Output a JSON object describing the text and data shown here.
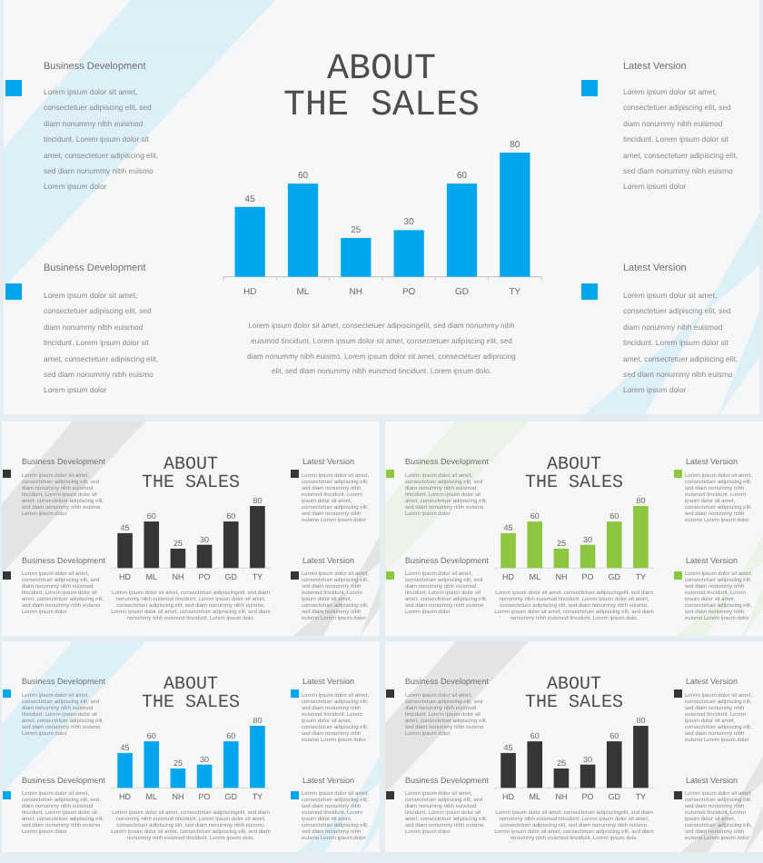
{
  "chart_data": [
    {
      "type": "bar",
      "title": "ABOUT\nTHE SALES",
      "categories": [
        "HD",
        "ML",
        "NH",
        "PO",
        "GD",
        "TY"
      ],
      "values": [
        45,
        60,
        25,
        30,
        60,
        80
      ],
      "color": "#00a6ed",
      "data_labels": true,
      "annotations": [
        "Business Development",
        "Lorem ipsum dolor sit amet,\nconsectetuer adipiscing elit, sed\ndiam nonummy nibh euismod\ntincidunt. Lorem ipsum dolor sit\namet, consectetuer adipiscing elit,\nsed diam nonummy nibh euismo\nLorem ipsum dolor",
        "Latest Version",
        "Lorem ipsum dolor sit amet,\nconsectetuer adipiscing elit, sed\ndiam nonummy nibh euismod\ntincidunt. Lorem ipsum dolor sit\namet, consectetuer adipiscing elit,\nsed diam nonummy nibh euismo\nLorem ipsum dolor",
        "Business Development",
        "Lorem ipsum dolor sit amet,\nconsectetuer adipiscing elit, sed\ndiam nonummy nibh euismod\ntincidunt. Lorem ipsum dolor sit\namet, consectetuer adipiscing elit,\nsed diam nonummy nibh euismo\nLorem ipsum dolor",
        "Latest Version",
        "Lorem ipsum dolor sit amet,\nconsectetuer adipiscing elit, sed\ndiam nonummy nibh euismod\ntincidunt. Lorem ipsum dolor sit\namet, consectetuer adipiscing elit,\nsed diam nonummy nibh euismo\nLorem ipsum dolor",
        "Lorem ipsum dolor sit amet, consectetuer adipiscingelit, sed diam nonummy nibh\neuismod tincidunt. Lorem ipsum dolor sit amet, consectetuer adipiscing elit, sed\ndiam nonummy nibh euismo. Lorem ipsum dolor sit amet, consectetuer adipiscing\nelit, sed diam nonummy nibh euismod tincidunt. Lorem ipsum dolo."
      ]
    },
    {
      "type": "bar",
      "title": "ABOUT\nTHE SALES",
      "categories": [
        "HD",
        "ML",
        "NH",
        "PO",
        "GD",
        "TY"
      ],
      "values": [
        45,
        60,
        25,
        30,
        60,
        80
      ],
      "color": "#383635",
      "data_labels": true,
      "annotations": [
        "Business Development",
        "Lorem ipsum dolor sit amet,\nconsectetuer adipiscing elit, sed\ndiam nonummy nibh euismod\ntincidunt. Lorem ipsum dolor sit\namet, consectetuer adipiscing elit,\nsed diam nonummy nibh euismo\nLorem ipsum dolor",
        "Latest Version",
        "Lorem ipsum dolor sit amet,\nconsectetuer adipiscing elit, sed\ndiam nonummy nibh euismod\ntincidunt. Lorem ipsum dolor sit\namet, consectetuer adipiscing elit,\nsed diam nonummy nibh euismo\nLorem ipsum dolor",
        "Business Development",
        "Lorem ipsum dolor sit amet,\nconsectetuer adipiscing elit, sed\ndiam nonummy nibh euismod\ntincidunt. Lorem ipsum dolor sit\namet, consectetuer adipiscing elit,\nsed diam nonummy nibh euismo\nLorem ipsum dolor",
        "Latest Version",
        "Lorem ipsum dolor sit amet,\nconsectetuer adipiscing elit, sed\ndiam nonummy nibh euismod\ntincidunt. Lorem ipsum dolor sit\namet, consectetuer adipiscing elit,\nsed diam nonummy nibh euismo\nLorem ipsum dolor",
        "Lorem ipsum dolor sit amet, consectetuer adipiscingelit, sed diam nonummy nibh\neuismod tincidunt. Lorem ipsum dolor sit amet, consectetuer adipiscing elit, sed\ndiam nonummy nibh euismo. Lorem ipsum dolor sit amet, consectetuer adipiscing\nelit, sed diam nonummy nibh euismod tincidunt. Lorem ipsum dolo."
      ]
    },
    {
      "type": "bar",
      "title": "ABOUT\nTHE SALES",
      "categories": [
        "HD",
        "ML",
        "NH",
        "PO",
        "GD",
        "TY"
      ],
      "values": [
        45,
        60,
        25,
        30,
        60,
        80
      ],
      "color": "#8dc63f",
      "data_labels": true,
      "annotations": [
        "Business Development",
        "Lorem ipsum dolor sit amet,\nconsectetuer adipiscing elit, sed\ndiam nonummy nibh euismod\ntincidunt. Lorem ipsum dolor sit\namet, consectetuer adipiscing elit,\nsed diam nonummy nibh euismo\nLorem ipsum dolor",
        "Latest Version",
        "Lorem ipsum dolor sit amet,\nconsectetuer adipiscing elit, sed\ndiam nonummy nibh euismod\ntincidunt. Lorem ipsum dolor sit\namet, consectetuer adipiscing elit,\nsed diam nonummy nibh euismo\nLorem ipsum dolor",
        "Business Development",
        "Lorem ipsum dolor sit amet,\nconsectetuer adipiscing elit, sed\ndiam nonummy nibh euismod\ntincidunt. Lorem ipsum dolor sit\namet, consectetuer adipiscing elit,\nsed diam nonummy nibh euismo\nLorem ipsum dolor",
        "Latest Version",
        "Lorem ipsum dolor sit amet,\nconsectetuer adipiscing elit, sed\ndiam nonummy nibh euismod\ntincidunt. Lorem ipsum dolor sit\namet, consectetuer adipiscing elit,\nsed diam nonummy nibh euismo\nLorem ipsum dolor",
        "Lorem ipsum dolor sit amet, consectetuer adipiscingelit, sed diam nonummy nibh\neuismod tincidunt. Lorem ipsum dolor sit amet, consectetuer adipiscing elit, sed\ndiam nonummy nibh euismo. Lorem ipsum dolor sit amet, consectetuer adipiscing\nelit, sed diam nonummy nibh euismod tincidunt. Lorem ipsum dolo."
      ]
    },
    {
      "type": "bar",
      "title": "ABOUT\nTHE SALES",
      "categories": [
        "HD",
        "ML",
        "NH",
        "PO",
        "GD",
        "TY"
      ],
      "values": [
        45,
        60,
        25,
        30,
        60,
        80
      ],
      "color": "#00a6ed",
      "data_labels": true,
      "annotations": [
        "Business Development",
        "Lorem ipsum dolor sit amet,\nconsectetuer adipiscing elit, sed\ndiam nonummy nibh euismod\ntincidunt. Lorem ipsum dolor sit\namet, consectetuer adipiscing elit,\nsed diam nonummy nibh euismo\nLorem ipsum dolor",
        "Latest Version",
        "Lorem ipsum dolor sit amet,\nconsectetuer adipiscing elit, sed\ndiam nonummy nibh euismod\ntincidunt. Lorem ipsum dolor sit\namet, consectetuer adipiscing elit,\nsed diam nonummy nibh euismo\nLorem ipsum dolor",
        "Business Development",
        "Lorem ipsum dolor sit amet,\nconsectetuer adipiscing elit, sed\ndiam nonummy nibh euismod\ntincidunt. Lorem ipsum dolor sit\namet, consectetuer adipiscing elit,\nsed diam nonummy nibh euismo\nLorem ipsum dolor",
        "Latest Version",
        "Lorem ipsum dolor sit amet,\nconsectetuer adipiscing elit, sed\ndiam nonummy nibh euismod\ntincidunt. Lorem ipsum dolor sit\namet, consectetuer adipiscing elit,\nsed diam nonummy nibh euismo\nLorem ipsum dolor",
        "Lorem ipsum dolor sit amet, consectetuer adipiscingelit, sed diam nonummy nibh\neuismod tincidunt. Lorem ipsum dolor sit amet, consectetuer adipiscing elit, sed\ndiam nonummy nibh euismo. Lorem ipsum dolor sit amet, consectetuer adipiscing\nelit, sed diam nonummy nibh euismod tincidunt. Lorem ipsum dolo."
      ]
    },
    {
      "type": "bar",
      "title": "ABOUT\nTHE SALES",
      "categories": [
        "HD",
        "ML",
        "NH",
        "PO",
        "GD",
        "TY"
      ],
      "values": [
        45,
        60,
        25,
        30,
        60,
        80
      ],
      "color": "#383635",
      "data_labels": true,
      "annotations": [
        "Business Development",
        "Lorem ipsum dolor sit amet,\nconsectetuer adipiscing elit, sed\ndiam nonummy nibh euismod\ntincidunt. Lorem ipsum dolor sit\namet, consectetuer adipiscing elit,\nsed diam nonummy nibh euismo\nLorem ipsum dolor",
        "Latest Version",
        "Lorem ipsum dolor sit amet,\nconsectetuer adipiscing elit, sed\ndiam nonummy nibh euismod\ntincidunt. Lorem ipsum dolor sit\namet, consectetuer adipiscing elit,\nsed diam nonummy nibh euismo\nLorem ipsum dolor",
        "Business Development",
        "Lorem ipsum dolor sit amet,\nconsectetuer adipiscing elit, sed\ndiam nonummy nibh euismod\ntincidunt. Lorem ipsum dolor sit\namet, consectetuer adipiscing elit,\nsed diam nonummy nibh euismo\nLorem ipsum dolor",
        "Latest Version",
        "Lorem ipsum dolor sit amet,\nconsectetuer adipiscing elit, sed\ndiam nonummy nibh euismod\ntincidunt. Lorem ipsum dolor sit\namet, consectetuer adipiscing elit,\nsed diam nonummy nibh euismo\nLorem ipsum dolor",
        "Lorem ipsum dolor sit amet, consectetuer adipiscingelit, sed diam nonummy nibh\neuismod tincidunt. Lorem ipsum dolor sit amet, consectetuer adipiscing elit, sed\ndiam nonummy nibh euismo. Lorem ipsum dolor sit amet, consectetuer adipiscing\nelit, sed diam nonummy nibh euismod tincidunt. Lorem ipsum dolo."
      ]
    }
  ]
}
